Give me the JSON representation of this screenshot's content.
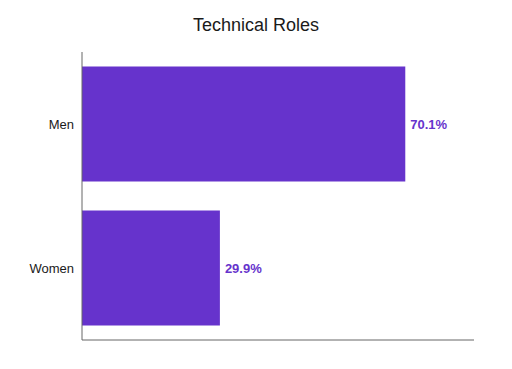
{
  "chart_data": {
    "type": "bar",
    "title": "Technical Roles",
    "orientation": "horizontal",
    "categories": [
      "Men",
      "Women"
    ],
    "values": [
      70.1,
      29.9
    ],
    "value_labels": [
      "70.1%",
      "29.9%"
    ],
    "data_labels": true,
    "color": "#6633CC",
    "xlim": [
      0,
      85
    ],
    "tick_labels": "y",
    "grid": false
  }
}
